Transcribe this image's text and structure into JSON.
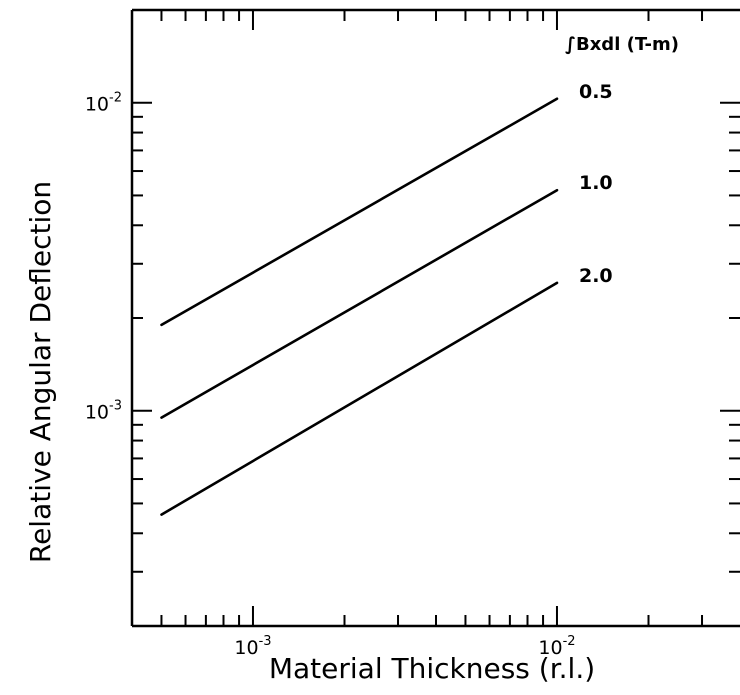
{
  "chart_data": {
    "type": "line",
    "title": "",
    "xlabel": "Material Thickness (r.l.)",
    "ylabel": "Relative Angular Deflection",
    "x_scale": "log",
    "y_scale": "log",
    "xlim": [
      0.0004,
      0.04
    ],
    "ylim": [
      0.0002,
      0.02
    ],
    "grid": false,
    "legend_title": "∫Bxdl (T-m)",
    "x_tick_labels": [
      {
        "value": 0.001,
        "base": "10",
        "exp": "-3"
      },
      {
        "value": 0.01,
        "base": "10",
        "exp": "-2"
      }
    ],
    "y_tick_labels": [
      {
        "value": 0.001,
        "base": "10",
        "exp": "-3"
      },
      {
        "value": 0.01,
        "base": "10",
        "exp": "-2"
      }
    ],
    "series": [
      {
        "name": "0.5",
        "x": [
          0.0005,
          0.01
        ],
        "y": [
          0.0019,
          0.0103
        ]
      },
      {
        "name": "1.0",
        "x": [
          0.0005,
          0.01
        ],
        "y": [
          0.00095,
          0.0052
        ]
      },
      {
        "name": "2.0",
        "x": [
          0.0005,
          0.01
        ],
        "y": [
          0.00046,
          0.0026
        ]
      }
    ]
  }
}
